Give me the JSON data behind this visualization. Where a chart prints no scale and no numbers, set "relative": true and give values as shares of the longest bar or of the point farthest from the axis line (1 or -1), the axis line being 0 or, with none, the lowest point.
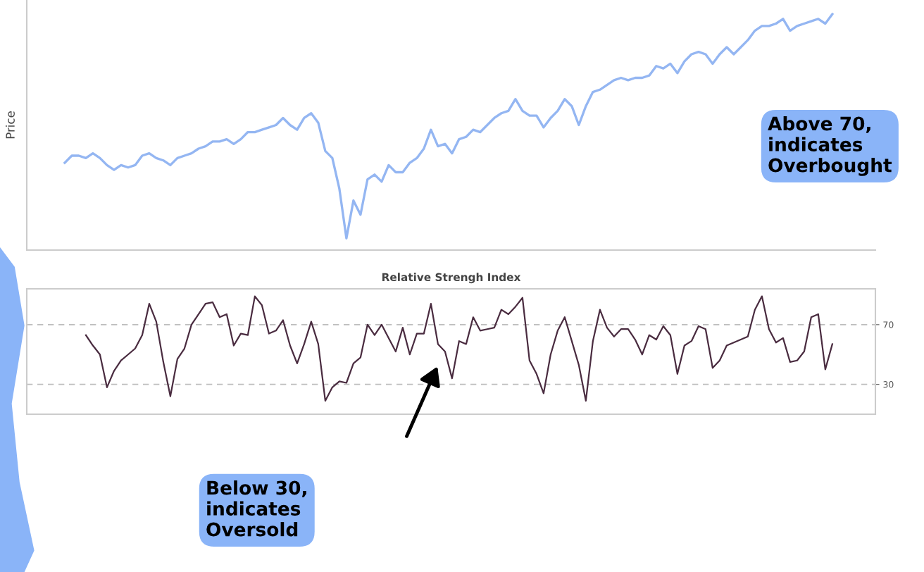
{
  "chart_data": [
    {
      "type": "line",
      "ylabel": "Price",
      "relative": true,
      "tick_labels": false,
      "grid": false,
      "legend": false,
      "categories": [
        null,
        null,
        null,
        null,
        null,
        null,
        null,
        null,
        null,
        null,
        null,
        null,
        null,
        null,
        null,
        null,
        null,
        null,
        null,
        null,
        null,
        null,
        null,
        null,
        null,
        null,
        null,
        null,
        null,
        null,
        null,
        null,
        null,
        null,
        null,
        null,
        null,
        null,
        null,
        null,
        null,
        null,
        null,
        null,
        null,
        null,
        null,
        null,
        null,
        null,
        null,
        null,
        null,
        null,
        null,
        null,
        null,
        null,
        null,
        null,
        null,
        null,
        null,
        null,
        null,
        null,
        null,
        null,
        null,
        null,
        null,
        null,
        null,
        null,
        null,
        null,
        null,
        null,
        null,
        null,
        null,
        null,
        null,
        null,
        null,
        null,
        null,
        null,
        null,
        null,
        null,
        null,
        null,
        null,
        null,
        null,
        null,
        null,
        null,
        null,
        null,
        null,
        null,
        null,
        null,
        null,
        null,
        null,
        null,
        null
      ],
      "series": [
        {
          "color": "#94b6f2",
          "values": [
            0.37,
            0.4,
            0.4,
            0.39,
            0.41,
            0.39,
            0.36,
            0.34,
            0.36,
            0.35,
            0.36,
            0.4,
            0.41,
            0.39,
            0.38,
            0.36,
            0.39,
            0.4,
            0.41,
            0.43,
            0.44,
            0.46,
            0.46,
            0.47,
            0.45,
            0.47,
            0.5,
            0.5,
            0.51,
            0.52,
            0.53,
            0.56,
            0.53,
            0.51,
            0.56,
            0.58,
            0.54,
            0.42,
            0.39,
            0.26,
            0.05,
            0.21,
            0.15,
            0.3,
            0.32,
            0.29,
            0.36,
            0.33,
            0.33,
            0.37,
            0.39,
            0.43,
            0.51,
            0.44,
            0.45,
            0.41,
            0.47,
            0.48,
            0.51,
            0.5,
            0.53,
            0.56,
            0.58,
            0.59,
            0.64,
            0.59,
            0.57,
            0.57,
            0.52,
            0.56,
            0.59,
            0.64,
            0.61,
            0.53,
            0.61,
            0.67,
            0.68,
            0.7,
            0.72,
            0.73,
            0.72,
            0.73,
            0.73,
            0.74,
            0.78,
            0.77,
            0.79,
            0.75,
            0.8,
            0.83,
            0.84,
            0.83,
            0.79,
            0.83,
            0.86,
            0.83,
            0.86,
            0.89,
            0.93,
            0.95,
            0.95,
            0.96,
            0.98,
            0.93,
            0.95,
            0.96,
            0.97,
            0.98,
            0.96,
            1.0
          ]
        }
      ]
    },
    {
      "type": "line",
      "title": "Relative Strengh Index",
      "tick_labels": "y",
      "grid": false,
      "legend": false,
      "categories": [
        null,
        null,
        null,
        null,
        null,
        null,
        null,
        null,
        null,
        null,
        null,
        null,
        null,
        null,
        null,
        null,
        null,
        null,
        null,
        null,
        null,
        null,
        null,
        null,
        null,
        null,
        null,
        null,
        null,
        null,
        null,
        null,
        null,
        null,
        null,
        null,
        null,
        null,
        null,
        null,
        null,
        null,
        null,
        null,
        null,
        null,
        null,
        null,
        null,
        null,
        null,
        null,
        null,
        null,
        null,
        null,
        null,
        null,
        null,
        null,
        null,
        null,
        null,
        null,
        null,
        null,
        null,
        null,
        null,
        null,
        null,
        null,
        null,
        null,
        null,
        null,
        null,
        null,
        null,
        null,
        null,
        null,
        null,
        null,
        null,
        null,
        null,
        null,
        null,
        null,
        null,
        null,
        null,
        null,
        null,
        null,
        null,
        null,
        null,
        null,
        null,
        null,
        null,
        null,
        null,
        null,
        null,
        null,
        null,
        null
      ],
      "ylim": [
        10,
        94
      ],
      "yticks": [
        30,
        70
      ],
      "series": [
        {
          "color": "#4a2c40",
          "values": [
            null,
            null,
            null,
            63,
            56,
            50,
            28,
            39,
            46,
            50,
            54,
            63,
            84,
            72,
            45,
            22,
            47,
            54,
            70,
            77,
            84,
            85,
            75,
            77,
            56,
            64,
            63,
            89,
            83,
            64,
            66,
            73,
            56,
            44,
            57,
            72,
            57,
            19,
            28,
            32,
            31,
            44,
            48,
            70,
            63,
            70,
            61,
            52,
            68,
            50,
            64,
            64,
            84,
            57,
            52,
            34,
            59,
            57,
            75,
            66,
            67,
            68,
            80,
            77,
            82,
            88,
            46,
            37,
            24,
            50,
            66,
            75,
            59,
            43,
            19,
            59,
            80,
            68,
            62,
            67,
            67,
            60,
            50,
            63,
            60,
            69,
            63,
            37,
            56,
            59,
            69,
            67,
            41,
            46,
            56,
            58,
            60,
            62,
            80,
            89,
            67,
            58,
            61,
            45,
            46,
            52,
            75,
            77,
            40,
            57
          ]
        }
      ],
      "ref_lines": [
        {
          "axis": "y",
          "value": 70,
          "color": "#bdbdbd",
          "line_style": "dashed"
        },
        {
          "axis": "y",
          "value": 30,
          "color": "#bdbdbd",
          "line_style": "dashed"
        }
      ],
      "annotations": [
        "Above 70,\nindicates\nOverbought",
        "Below 30,\nindicates\nOversold"
      ]
    }
  ]
}
